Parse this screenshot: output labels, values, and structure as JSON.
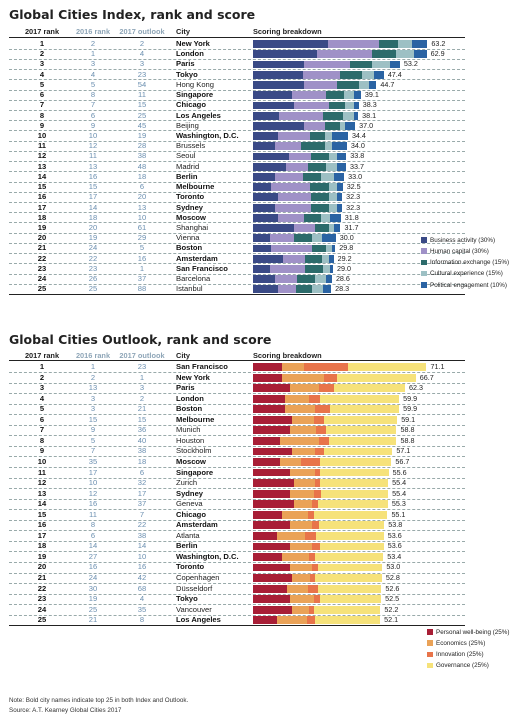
{
  "chart_data": [
    {
      "type": "bar",
      "stacked": true,
      "orientation": "horizontal",
      "title": "Global Cities Index, rank and score",
      "columns": [
        "2017 rank",
        "2016 rank",
        "2017 outlook",
        "City",
        "Scoring breakdown"
      ],
      "colors": [
        "#3a4a86",
        "#9f91c7",
        "#2c6b6b",
        "#9dc0c4",
        "#2a63a3"
      ],
      "legend": {
        "position": "bottom-right",
        "entries": [
          "Business activity (30%)",
          "Human capital (30%)",
          "Information exchange (15%)",
          "Cultural experience (15%)",
          "Political engagement (10%)"
        ]
      },
      "grid": false,
      "rows": [
        {
          "rank_2017": "1",
          "rank_2016": "2",
          "outlook_2017": "2",
          "city": "New York",
          "bold": true,
          "score": "63.2",
          "values": [
            27.0,
            18.5,
            7.0,
            5.0,
            5.7
          ]
        },
        {
          "rank_2017": "2",
          "rank_2016": "1",
          "outlook_2017": "4",
          "city": "London",
          "bold": true,
          "score": "62.9",
          "values": [
            23.2,
            20.0,
            8.5,
            6.5,
            4.7
          ]
        },
        {
          "rank_2017": "3",
          "rank_2016": "3",
          "outlook_2017": "3",
          "city": "Paris",
          "bold": true,
          "score": "53.2",
          "values": [
            18.5,
            16.5,
            8.0,
            6.5,
            3.7
          ]
        },
        {
          "rank_2017": "4",
          "rank_2016": "4",
          "outlook_2017": "23",
          "city": "Tokyo",
          "bold": true,
          "score": "47.4",
          "values": [
            18.0,
            13.5,
            8.0,
            4.5,
            3.4
          ]
        },
        {
          "rank_2017": "5",
          "rank_2016": "5",
          "outlook_2017": "54",
          "city": "Hong Kong",
          "bold": false,
          "score": "44.7",
          "values": [
            18.5,
            12.0,
            8.0,
            3.5,
            2.7
          ]
        },
        {
          "rank_2017": "6",
          "rank_2016": "8",
          "outlook_2017": "11",
          "city": "Singapore",
          "bold": true,
          "score": "39.1",
          "values": [
            14.0,
            12.5,
            6.5,
            3.5,
            2.6
          ]
        },
        {
          "rank_2017": "7",
          "rank_2016": "7",
          "outlook_2017": "15",
          "city": "Chicago",
          "bold": true,
          "score": "38.3",
          "values": [
            15.0,
            12.5,
            6.0,
            3.0,
            1.8
          ]
        },
        {
          "rank_2017": "8",
          "rank_2016": "6",
          "outlook_2017": "25",
          "city": "Los Angeles",
          "bold": true,
          "score": "38.1",
          "values": [
            9.5,
            16.0,
            7.0,
            4.0,
            1.6
          ]
        },
        {
          "rank_2017": "9",
          "rank_2016": "9",
          "outlook_2017": "45",
          "city": "Beijing",
          "bold": false,
          "score": "37.0",
          "values": [
            18.5,
            7.5,
            5.5,
            2.0,
            3.5
          ]
        },
        {
          "rank_2017": "10",
          "rank_2016": "10",
          "outlook_2017": "19",
          "city": "Washington, D.C.",
          "bold": true,
          "score": "34.4",
          "values": [
            9.0,
            11.5,
            5.5,
            2.5,
            5.9
          ]
        },
        {
          "rank_2017": "11",
          "rank_2016": "12",
          "outlook_2017": "28",
          "city": "Brussels",
          "bold": false,
          "score": "34.0",
          "values": [
            8.0,
            9.5,
            8.5,
            2.5,
            5.5
          ]
        },
        {
          "rank_2017": "12",
          "rank_2016": "11",
          "outlook_2017": "38",
          "city": "Seoul",
          "bold": false,
          "score": "33.8",
          "values": [
            13.0,
            8.0,
            6.5,
            3.0,
            3.3
          ]
        },
        {
          "rank_2017": "13",
          "rank_2016": "13",
          "outlook_2017": "48",
          "city": "Madrid",
          "bold": false,
          "score": "33.7",
          "values": [
            12.0,
            8.0,
            6.5,
            4.0,
            3.2
          ]
        },
        {
          "rank_2017": "14",
          "rank_2016": "16",
          "outlook_2017": "18",
          "city": "Berlin",
          "bold": true,
          "score": "33.0",
          "values": [
            8.0,
            10.0,
            6.5,
            5.0,
            3.5
          ]
        },
        {
          "rank_2017": "15",
          "rank_2016": "15",
          "outlook_2017": "6",
          "city": "Melbourne",
          "bold": true,
          "score": "32.5",
          "values": [
            6.5,
            14.0,
            7.0,
            3.0,
            2.0
          ]
        },
        {
          "rank_2017": "16",
          "rank_2016": "17",
          "outlook_2017": "20",
          "city": "Toronto",
          "bold": true,
          "score": "32.3",
          "values": [
            9.0,
            12.0,
            6.5,
            3.0,
            1.8
          ]
        },
        {
          "rank_2017": "17",
          "rank_2016": "14",
          "outlook_2017": "13",
          "city": "Sydney",
          "bold": true,
          "score": "32.3",
          "values": [
            8.0,
            13.0,
            6.5,
            3.0,
            1.8
          ]
        },
        {
          "rank_2017": "18",
          "rank_2016": "18",
          "outlook_2017": "10",
          "city": "Moscow",
          "bold": true,
          "score": "31.8",
          "values": [
            9.0,
            9.5,
            6.0,
            3.5,
            3.8
          ]
        },
        {
          "rank_2017": "19",
          "rank_2016": "20",
          "outlook_2017": "61",
          "city": "Shanghai",
          "bold": false,
          "score": "31.7",
          "values": [
            15.0,
            7.5,
            5.0,
            2.0,
            2.2
          ]
        },
        {
          "rank_2017": "20",
          "rank_2016": "19",
          "outlook_2017": "29",
          "city": "Vienna",
          "bold": false,
          "score": "30.0",
          "values": [
            6.0,
            9.0,
            6.5,
            3.5,
            5.0
          ]
        },
        {
          "rank_2017": "21",
          "rank_2016": "24",
          "outlook_2017": "5",
          "city": "Boston",
          "bold": true,
          "score": "29.8",
          "values": [
            6.5,
            15.0,
            5.0,
            2.0,
            1.3
          ]
        },
        {
          "rank_2017": "22",
          "rank_2016": "22",
          "outlook_2017": "16",
          "city": "Amsterdam",
          "bold": true,
          "score": "29.2",
          "values": [
            11.0,
            8.0,
            6.0,
            2.5,
            1.7
          ]
        },
        {
          "rank_2017": "23",
          "rank_2016": "23",
          "outlook_2017": "1",
          "city": "San Francisco",
          "bold": true,
          "score": "29.0",
          "values": [
            6.0,
            13.0,
            6.5,
            2.5,
            1.0
          ]
        },
        {
          "rank_2017": "24",
          "rank_2016": "26",
          "outlook_2017": "37",
          "city": "Barcelona",
          "bold": false,
          "score": "28.6",
          "values": [
            8.0,
            8.0,
            6.5,
            4.0,
            2.1
          ]
        },
        {
          "rank_2017": "25",
          "rank_2016": "25",
          "outlook_2017": "88",
          "city": "Istanbul",
          "bold": false,
          "score": "28.3",
          "values": [
            9.0,
            6.5,
            6.0,
            4.0,
            2.8
          ]
        }
      ]
    },
    {
      "type": "bar",
      "stacked": true,
      "orientation": "horizontal",
      "title": "Global Cities Outlook, rank and score",
      "columns": [
        "2017 rank",
        "2016 rank",
        "2017 outlook",
        "City",
        "Scoring breakdown"
      ],
      "colors": [
        "#a81e36",
        "#eaa257",
        "#e8744a",
        "#f6e27a"
      ],
      "legend": {
        "position": "bottom-right",
        "entries": [
          "Personal well-being (25%)",
          "Economics (25%)",
          "Innovation (25%)",
          "Governance (25%)"
        ]
      },
      "grid": false,
      "rows": [
        {
          "rank_2017": "1",
          "rank_2016": "1",
          "outlook_2017": "23",
          "city": "San Francisco",
          "bold": true,
          "score": "71.1",
          "values": [
            12.0,
            9.0,
            18.0,
            32.1
          ]
        },
        {
          "rank_2017": "2",
          "rank_2016": "2",
          "outlook_2017": "1",
          "city": "New York",
          "bold": true,
          "score": "66.7",
          "values": [
            12.0,
            17.0,
            5.5,
            32.2
          ]
        },
        {
          "rank_2017": "3",
          "rank_2016": "13",
          "outlook_2017": "3",
          "city": "Paris",
          "bold": true,
          "score": "62.3",
          "values": [
            15.0,
            12.0,
            6.0,
            29.3
          ]
        },
        {
          "rank_2017": "4",
          "rank_2016": "3",
          "outlook_2017": "2",
          "city": "London",
          "bold": true,
          "score": "59.9",
          "values": [
            13.0,
            10.0,
            4.5,
            32.4
          ]
        },
        {
          "rank_2017": "5",
          "rank_2016": "3",
          "outlook_2017": "21",
          "city": "Boston",
          "bold": true,
          "score": "59.9",
          "values": [
            13.0,
            12.5,
            6.0,
            28.4
          ]
        },
        {
          "rank_2017": "6",
          "rank_2016": "15",
          "outlook_2017": "15",
          "city": "Melbourne",
          "bold": true,
          "score": "59.1",
          "values": [
            16.0,
            9.0,
            4.0,
            30.1
          ]
        },
        {
          "rank_2017": "7",
          "rank_2016": "9",
          "outlook_2017": "36",
          "city": "Munich",
          "bold": false,
          "score": "58.8",
          "values": [
            15.0,
            11.0,
            4.0,
            28.8
          ]
        },
        {
          "rank_2017": "8",
          "rank_2016": "5",
          "outlook_2017": "40",
          "city": "Houston",
          "bold": false,
          "score": "58.8",
          "values": [
            11.0,
            16.0,
            4.0,
            27.8
          ]
        },
        {
          "rank_2017": "9",
          "rank_2016": "7",
          "outlook_2017": "38",
          "city": "Stockholm",
          "bold": false,
          "score": "57.1",
          "values": [
            16.0,
            9.5,
            3.5,
            28.1
          ]
        },
        {
          "rank_2017": "10",
          "rank_2016": "35",
          "outlook_2017": "18",
          "city": "Moscow",
          "bold": true,
          "score": "56.7",
          "values": [
            11.0,
            8.5,
            8.0,
            29.2
          ]
        },
        {
          "rank_2017": "11",
          "rank_2016": "17",
          "outlook_2017": "6",
          "city": "Singapore",
          "bold": true,
          "score": "55.6",
          "values": [
            15.0,
            10.5,
            2.0,
            28.1
          ]
        },
        {
          "rank_2017": "12",
          "rank_2016": "10",
          "outlook_2017": "32",
          "city": "Zurich",
          "bold": false,
          "score": "55.4",
          "values": [
            17.0,
            8.5,
            2.0,
            27.9
          ]
        },
        {
          "rank_2017": "13",
          "rank_2016": "12",
          "outlook_2017": "17",
          "city": "Sydney",
          "bold": true,
          "score": "55.4",
          "values": [
            15.0,
            10.0,
            3.0,
            27.4
          ]
        },
        {
          "rank_2017": "14",
          "rank_2016": "16",
          "outlook_2017": "37",
          "city": "Geneva",
          "bold": false,
          "score": "55.3",
          "values": [
            17.0,
            7.0,
            2.5,
            28.8
          ]
        },
        {
          "rank_2017": "15",
          "rank_2016": "11",
          "outlook_2017": "7",
          "city": "Chicago",
          "bold": true,
          "score": "55.1",
          "values": [
            12.0,
            10.5,
            2.5,
            30.1
          ]
        },
        {
          "rank_2017": "16",
          "rank_2016": "8",
          "outlook_2017": "22",
          "city": "Amsterdam",
          "bold": true,
          "score": "53.8",
          "values": [
            15.0,
            9.0,
            3.0,
            26.8
          ]
        },
        {
          "rank_2017": "17",
          "rank_2016": "6",
          "outlook_2017": "38",
          "city": "Atlanta",
          "bold": false,
          "score": "53.6",
          "values": [
            10.0,
            11.5,
            4.5,
            27.6
          ]
        },
        {
          "rank_2017": "18",
          "rank_2016": "14",
          "outlook_2017": "14",
          "city": "Berlin",
          "bold": true,
          "score": "53.6",
          "values": [
            15.0,
            9.0,
            3.5,
            26.1
          ]
        },
        {
          "rank_2017": "19",
          "rank_2016": "27",
          "outlook_2017": "10",
          "city": "Washington, D.C.",
          "bold": true,
          "score": "53.4",
          "values": [
            12.0,
            11.0,
            2.5,
            27.9
          ]
        },
        {
          "rank_2017": "20",
          "rank_2016": "16",
          "outlook_2017": "16",
          "city": "Toronto",
          "bold": true,
          "score": "53.0",
          "values": [
            15.0,
            9.0,
            2.5,
            26.5
          ]
        },
        {
          "rank_2017": "21",
          "rank_2016": "24",
          "outlook_2017": "42",
          "city": "Copenhagen",
          "bold": false,
          "score": "52.8",
          "values": [
            16.0,
            7.5,
            2.0,
            27.3
          ]
        },
        {
          "rank_2017": "22",
          "rank_2016": "30",
          "outlook_2017": "68",
          "city": "Düsseldorf",
          "bold": false,
          "score": "52.6",
          "values": [
            14.0,
            8.5,
            4.0,
            26.1
          ]
        },
        {
          "rank_2017": "23",
          "rank_2016": "19",
          "outlook_2017": "4",
          "city": "Tokyo",
          "bold": true,
          "score": "52.5",
          "values": [
            15.0,
            10.0,
            2.5,
            25.0
          ]
        },
        {
          "rank_2017": "24",
          "rank_2016": "25",
          "outlook_2017": "35",
          "city": "Vancouver",
          "bold": false,
          "score": "52.2",
          "values": [
            16.0,
            7.0,
            2.0,
            27.2
          ]
        },
        {
          "rank_2017": "25",
          "rank_2016": "21",
          "outlook_2017": "8",
          "city": "Los Angeles",
          "bold": true,
          "score": "52.1",
          "values": [
            10.0,
            12.0,
            3.5,
            26.6
          ]
        }
      ]
    }
  ],
  "footnote": {
    "note": "Note: Bold city names indicate top 25 in both Index and Outlook.",
    "source": "Source: A.T. Kearney Global Cities 2017"
  }
}
